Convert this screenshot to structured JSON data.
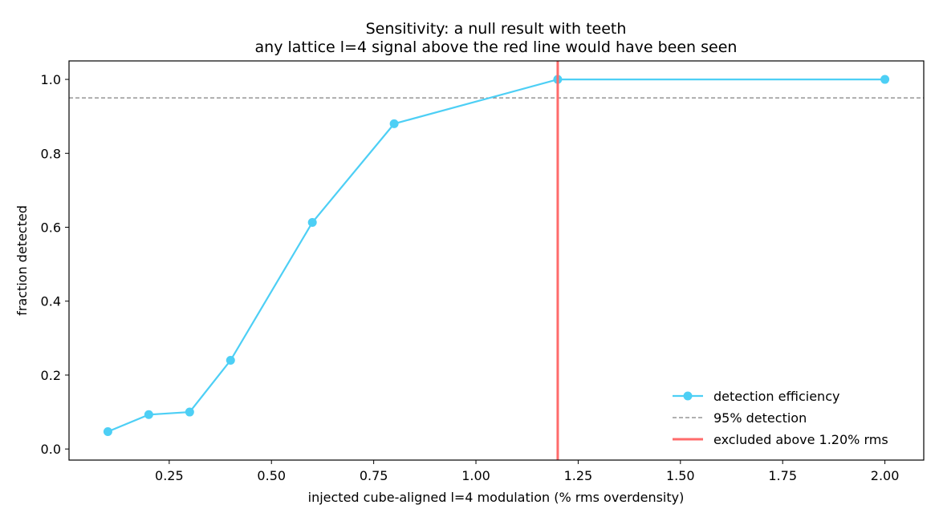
{
  "chart_data": {
    "type": "line",
    "title": "Sensitivity: a null result with teeth",
    "subtitle": "any lattice l=4 signal above the red line would have been seen",
    "xlabel": "injected cube-aligned l=4 modulation  (% rms overdensity)",
    "ylabel": "fraction detected",
    "xlim": [
      0.005,
      2.095
    ],
    "ylim": [
      -0.03,
      1.05
    ],
    "x_ticks": [
      "0.25",
      "0.50",
      "0.75",
      "1.00",
      "1.25",
      "1.50",
      "1.75",
      "2.00"
    ],
    "y_ticks": [
      "0.0",
      "0.2",
      "0.4",
      "0.6",
      "0.8",
      "1.0"
    ],
    "series": [
      {
        "name": "detection efficiency",
        "color": "#4dcff5",
        "x": [
          0.1,
          0.2,
          0.3,
          0.4,
          0.6,
          0.8,
          1.2,
          2.0
        ],
        "y": [
          0.047,
          0.093,
          0.1,
          0.24,
          0.613,
          0.88,
          1.0,
          1.0
        ]
      }
    ],
    "reference_lines": [
      {
        "name": "95% detection",
        "orientation": "horizontal",
        "value": 0.95,
        "color": "#808080",
        "style": "dashed"
      },
      {
        "name": "excluded above 1.20% rms",
        "orientation": "vertical",
        "value": 1.2,
        "color": "#ff6b6b",
        "style": "solid"
      }
    ],
    "legend_position": "bottom-right",
    "grid": false
  }
}
